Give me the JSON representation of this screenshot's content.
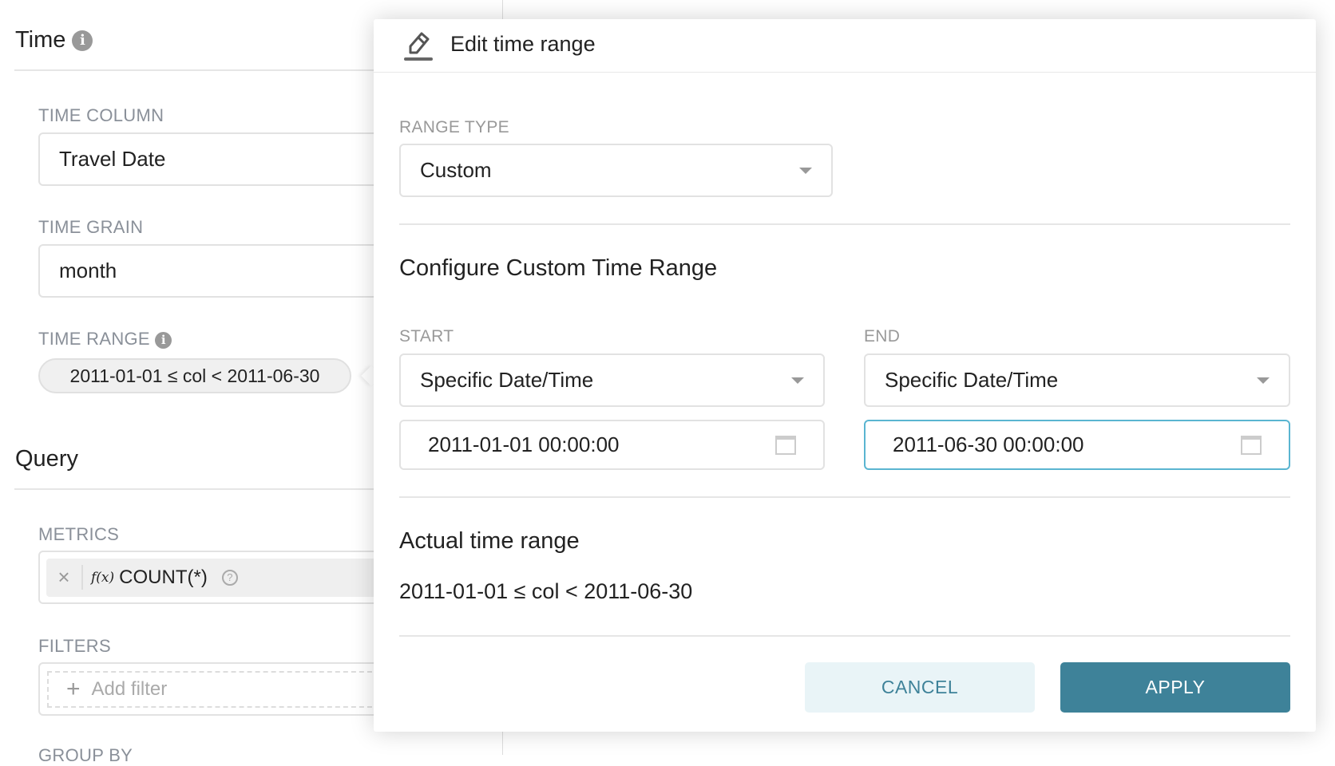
{
  "sidebar": {
    "time_title": "Time",
    "time_column": {
      "label": "TIME COLUMN",
      "value": "Travel Date"
    },
    "time_grain": {
      "label": "TIME GRAIN",
      "value": "month"
    },
    "time_range": {
      "label": "TIME RANGE",
      "value": "2011-01-01 ≤ col < 2011-06-30"
    },
    "query_title": "Query",
    "metrics": {
      "label": "METRICS",
      "item": "COUNT(*)",
      "fx": "f(x)",
      "remove": "×"
    },
    "filters": {
      "label": "FILTERS",
      "add": "Add filter"
    },
    "group_by": {
      "label": "GROUP BY"
    }
  },
  "popover": {
    "title": "Edit time range",
    "range_type": {
      "label": "RANGE TYPE",
      "value": "Custom"
    },
    "configure_title": "Configure Custom Time Range",
    "start": {
      "label": "START",
      "mode": "Specific Date/Time",
      "value": "2011-01-01 00:00:00"
    },
    "end": {
      "label": "END",
      "mode": "Specific Date/Time",
      "value": "2011-06-30 00:00:00"
    },
    "actual_title": "Actual time range",
    "actual_value": "2011-01-01 ≤ col < 2011-06-30",
    "cancel": "CANCEL",
    "apply": "APPLY"
  },
  "colors": {
    "primary": "#3e8299",
    "primary_light": "#e9f4f7",
    "focus": "#5ab5d1"
  }
}
